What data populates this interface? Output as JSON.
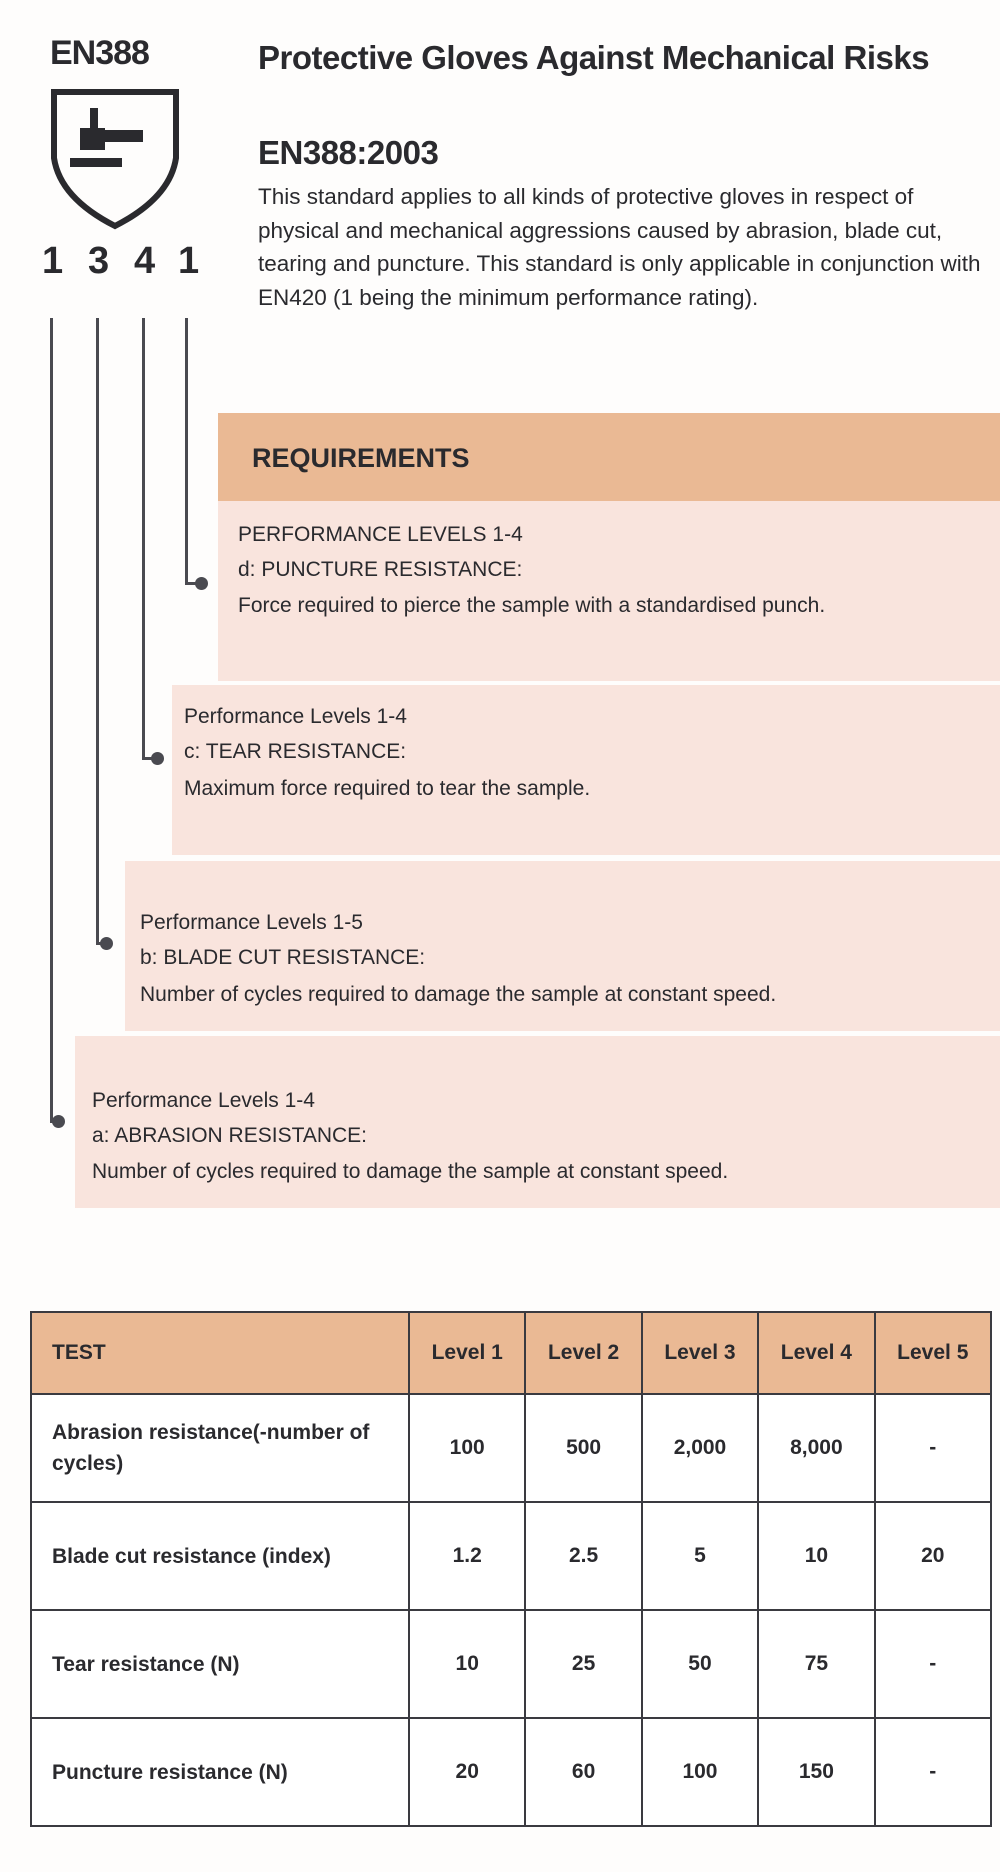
{
  "badge": {
    "code": "EN388",
    "ratings": [
      "1",
      "3",
      "4",
      "1"
    ],
    "icon": "hammer-shield-icon"
  },
  "header": {
    "title": "Protective Gloves Against Mechanical Risks",
    "subtitle": "EN388:2003",
    "intro": "This standard applies to all kinds of protective gloves in respect of physical and mechanical aggressions caused by abrasion, blade cut, tearing and puncture. This standard is only applicable in conjunction with EN420 (1 being the minimum performance rating)."
  },
  "requirements": {
    "heading": "REQUIREMENTS",
    "items": [
      {
        "levels": "PERFORMANCE LEVELS 1-4",
        "name": "d: PUNCTURE RESISTANCE:",
        "desc": "Force required to pierce the sample with a standardised punch."
      },
      {
        "levels": "Performance Levels 1-4",
        "name": "c: TEAR RESISTANCE:",
        "desc": "Maximum force required to tear the sample."
      },
      {
        "levels": "Performance Levels 1-5",
        "name": "b: BLADE CUT RESISTANCE:",
        "desc": "Number of cycles required to damage the sample at constant speed."
      },
      {
        "levels": "Performance Levels 1-4",
        "name": "a: ABRASION RESISTANCE:",
        "desc": "Number of cycles required to damage the sample at constant speed."
      }
    ]
  },
  "table": {
    "headers": [
      "TEST",
      "Level 1",
      "Level 2",
      "Level 3",
      "Level 4",
      "Level 5"
    ],
    "rows": [
      [
        "Abrasion resistance(-number of cycles)",
        "100",
        "500",
        "2,000",
        "8,000",
        "-"
      ],
      [
        "Blade cut resistance (index)",
        "1.2",
        "2.5",
        "5",
        "10",
        "20"
      ],
      [
        "Tear resistance (N)",
        "10",
        "25",
        "50",
        "75",
        "-"
      ],
      [
        "Puncture resistance (N)",
        "20",
        "60",
        "100",
        "150",
        "-"
      ]
    ]
  },
  "colors": {
    "header_fill": "#eab994",
    "box_fill": "#f9e4dd",
    "text": "#2a2a2e"
  }
}
